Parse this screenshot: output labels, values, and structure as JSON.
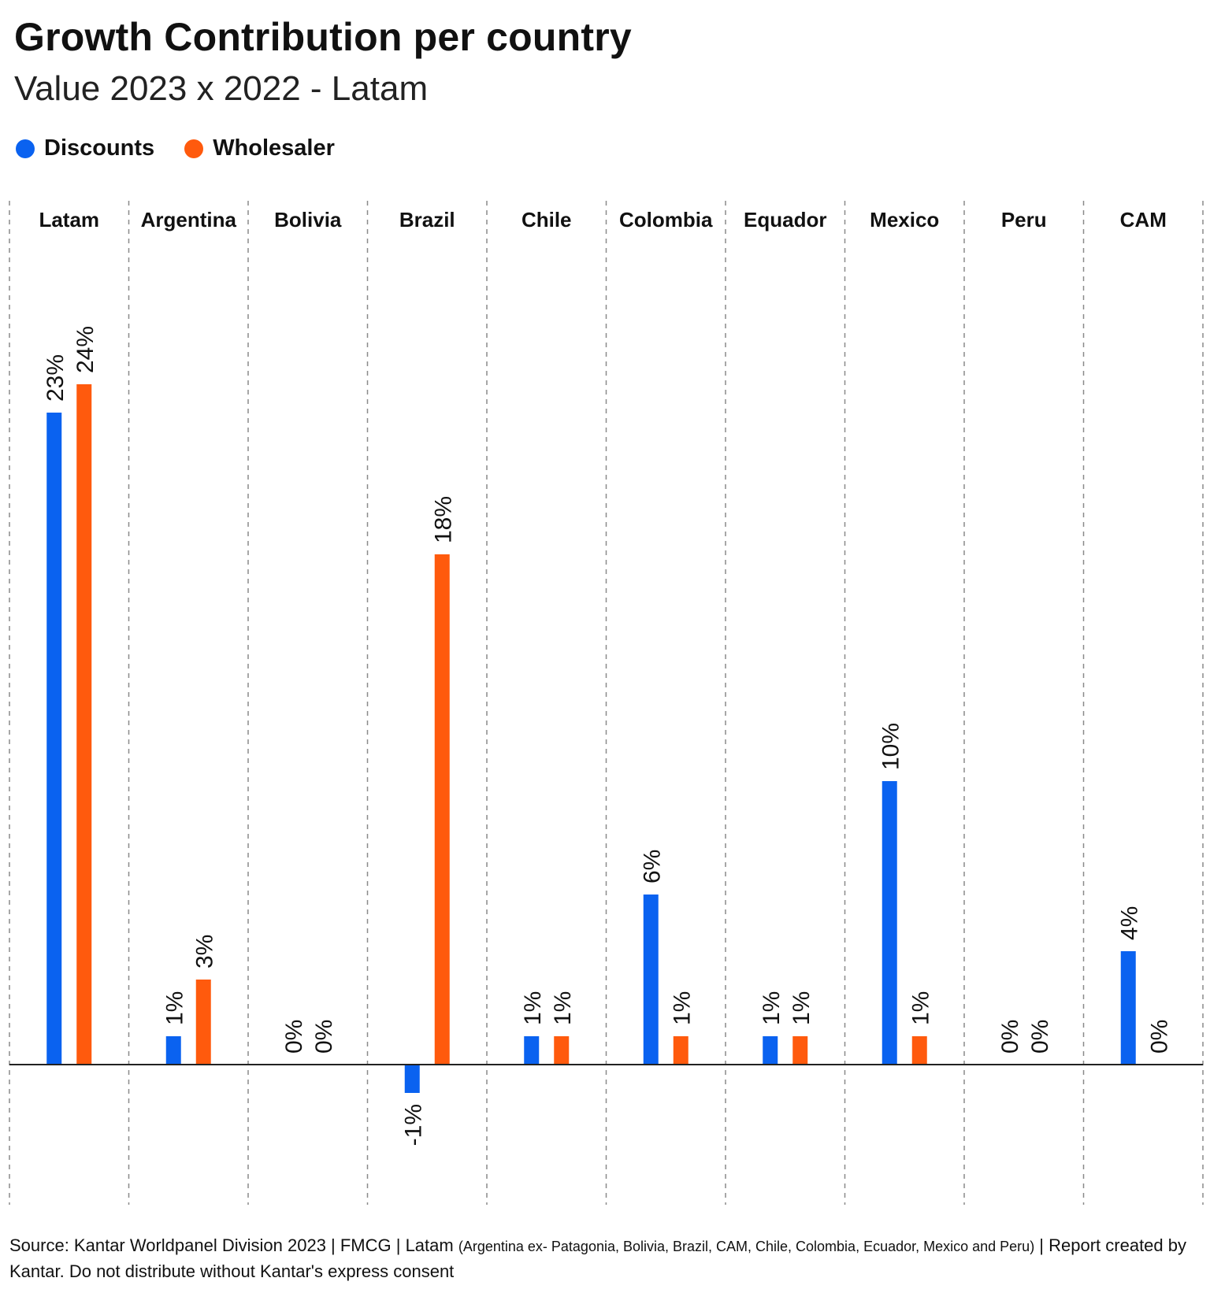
{
  "header": {
    "title": "Growth Contribution per country",
    "subtitle": "Value 2023 x 2022 - Latam"
  },
  "legend": {
    "items": [
      {
        "label": "Discounts",
        "color": "#0a62f0"
      },
      {
        "label": "Wholesaler",
        "color": "#ff5a0d"
      }
    ]
  },
  "chart_data": {
    "type": "bar",
    "title": "Growth Contribution per country",
    "subtitle": "Value 2023 x 2022 - Latam",
    "categories": [
      "Latam",
      "Argentina",
      "Bolivia",
      "Brazil",
      "Chile",
      "Colombia",
      "Equador",
      "Mexico",
      "Peru",
      "CAM"
    ],
    "series": [
      {
        "name": "Discounts",
        "color": "#0a62f0",
        "values": [
          23,
          1,
          0,
          -1,
          1,
          6,
          1,
          10,
          0,
          4
        ],
        "labels": [
          "23%",
          "1%",
          "0%",
          "-1%",
          "1%",
          "6%",
          "1%",
          "10%",
          "0%",
          "4%"
        ]
      },
      {
        "name": "Wholesaler",
        "color": "#ff5a0d",
        "values": [
          24,
          3,
          0,
          18,
          1,
          1,
          1,
          1,
          0,
          0
        ],
        "labels": [
          "24%",
          "3%",
          "0%",
          "18%",
          "1%",
          "1%",
          "1%",
          "1%",
          "0%",
          "0%"
        ]
      }
    ],
    "value_unit": "%",
    "ylim": [
      -5,
      30
    ],
    "grid": false,
    "category_separators": "dashed",
    "legend_position": "top-left"
  },
  "footer": {
    "source_main": "Source: Kantar Worldpanel Division 2023 | FMCG | Latam ",
    "source_small": "(Argentina ex- Patagonia, Bolivia, Brazil, CAM, Chile, Colombia, Ecuador, Mexico and Peru)",
    "source_end": " | Report created by Kantar. Do not distribute without Kantar's express consent"
  }
}
